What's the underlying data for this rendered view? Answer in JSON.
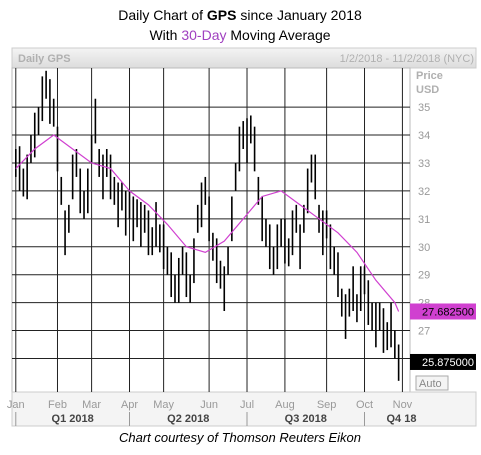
{
  "chart_data": {
    "type": "hilo",
    "title_parts": [
      "Daily Chart of ",
      "GPS",
      " since January 2018"
    ],
    "subtitle_parts": [
      "With ",
      "30-Day",
      " Moving Average"
    ],
    "panel_label": "Daily GPS",
    "date_range": "1/2/2018 - 11/2/2018 (NYC)",
    "axis_label": [
      "Price",
      "USD"
    ],
    "footer": "Chart courtesy of Thomson Reuters Eikon",
    "auto_button": "Auto",
    "color": "#000000",
    "ma_color": "#d040d0",
    "ylim": [
      24.8,
      36.4
    ],
    "yticks": [
      26,
      27,
      28,
      29,
      30,
      31,
      32,
      33,
      34,
      35
    ],
    "xlim": [
      -1,
      104
    ],
    "xticks": [
      {
        "value": 0,
        "label": "Jan"
      },
      {
        "value": 11,
        "label": "Feb"
      },
      {
        "value": 20,
        "label": "Mar"
      },
      {
        "value": 30,
        "label": "Apr"
      },
      {
        "value": 39,
        "label": "May"
      },
      {
        "value": 51,
        "label": "Jun"
      },
      {
        "value": 61,
        "label": "Jul"
      },
      {
        "value": 71,
        "label": "Aug"
      },
      {
        "value": 82,
        "label": "Sep"
      },
      {
        "value": 92,
        "label": "Oct"
      },
      {
        "value": 102,
        "label": "Nov"
      }
    ],
    "quarters": [
      "Q1 2018",
      "Q2 2018",
      "Q3 2018",
      "Q4 18"
    ],
    "bars": {
      "high": [
        33.5,
        33.6,
        32.8,
        33.3,
        34,
        34.8,
        35,
        36.1,
        36.3,
        36,
        35.3,
        34.3,
        32.5,
        31.3,
        31.5,
        33.3,
        33.5,
        32.8,
        32,
        32.8,
        34,
        35.3,
        33.5,
        33.3,
        33.5,
        33.3,
        32.5,
        32.3,
        32.3,
        32,
        32,
        31.8,
        31.7,
        31.6,
        31.5,
        31.3,
        30.7,
        31.6,
        30.8,
        30.8,
        30,
        29.8,
        29,
        29.6,
        30,
        29.8,
        29,
        30.3,
        31.5,
        32.3,
        32.5,
        31.8,
        30.5,
        30.3,
        29.5,
        29.3,
        30,
        31.8,
        33,
        34.3,
        34.5,
        34.6,
        34.7,
        34.3,
        32.5,
        31.8,
        31,
        30.8,
        30,
        30.8,
        31,
        31,
        30.3,
        31.3,
        31.5,
        30.8,
        31.5,
        32.8,
        33.3,
        33.3,
        31.5,
        31.3,
        31.3,
        30.8,
        30,
        29.8,
        28.5,
        28.3,
        28.5,
        29.3,
        28.3,
        29.3,
        29.3,
        28.8,
        28,
        28,
        28,
        27.8,
        27.3,
        28,
        27,
        26.5
      ],
      "low": [
        32.5,
        32,
        31.8,
        31.7,
        33,
        33.2,
        34,
        34.5,
        35.3,
        34.4,
        34.3,
        32.7,
        31.5,
        29.7,
        30.5,
        31.7,
        32.5,
        31.2,
        31,
        31.2,
        33,
        33.7,
        32.5,
        31.7,
        32.5,
        31.7,
        31.5,
        30.7,
        31.3,
        30.4,
        31,
        30.2,
        30.7,
        30,
        30.5,
        29.7,
        29.7,
        30,
        29.8,
        29.2,
        29,
        28.2,
        28,
        28,
        29,
        28.2,
        28,
        28.7,
        30.5,
        30.7,
        31.5,
        30.2,
        29.5,
        28.7,
        28.5,
        27.7,
        29,
        30.2,
        32,
        32.7,
        33.5,
        33,
        33.7,
        32.7,
        31.5,
        30.2,
        30,
        29.2,
        29,
        29.2,
        30,
        29.4,
        29.3,
        29.7,
        30.5,
        29.2,
        30.5,
        31.2,
        32.3,
        31.7,
        30.5,
        29.7,
        30.3,
        29.2,
        29,
        28.2,
        27.5,
        26.7,
        27.5,
        27.7,
        27.3,
        27.7,
        28.3,
        27.2,
        27,
        26.4,
        27,
        26.2,
        26.3,
        26.4,
        26,
        25.2
      ]
    },
    "ma": {
      "name": "30-Day Moving Average",
      "x": [
        0,
        5,
        10,
        15,
        20,
        25,
        30,
        35,
        40,
        45,
        50,
        55,
        60,
        65,
        70,
        75,
        80,
        85,
        90,
        95,
        100,
        101
      ],
      "values": [
        32.8,
        33.5,
        34,
        33.5,
        33,
        32.8,
        32,
        31.5,
        30.8,
        30,
        29.8,
        30.2,
        31,
        31.8,
        32,
        31.5,
        31,
        30.5,
        29.8,
        28.8,
        28,
        27.6825
      ]
    },
    "last_ma": {
      "value": 27.6825,
      "label": "27.682500"
    },
    "last_price": {
      "value": 25.875,
      "label": "25.875000"
    }
  }
}
